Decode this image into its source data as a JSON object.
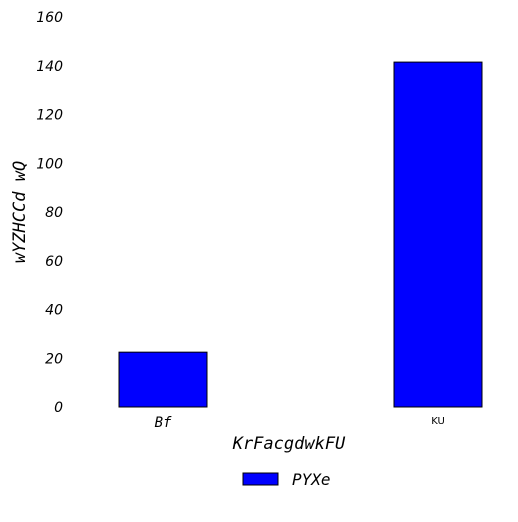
{
  "chart_data": {
    "type": "bar",
    "categories": [
      "Bf",
      "KU"
    ],
    "series": [
      {
        "name": "PYXe",
        "values": [
          22.5,
          141.5
        ],
        "color": "#0000ff"
      }
    ],
    "xlabel": "KrFacgdwkFU",
    "ylabel": "wYZHCCd wQ",
    "ylim": [
      0,
      160
    ],
    "yticks": [
      0,
      20,
      40,
      60,
      80,
      100,
      120,
      140,
      160
    ],
    "grid": false,
    "legend": {
      "position": "bottom-center"
    },
    "bar_edge_color": "#000000"
  }
}
